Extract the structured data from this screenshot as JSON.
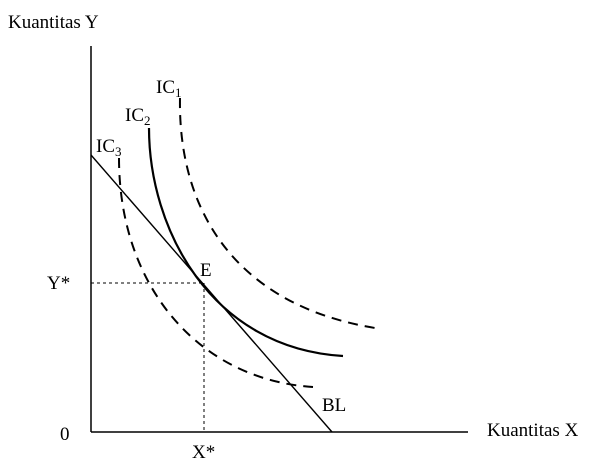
{
  "axes": {
    "y_label": "Kuantitas Y",
    "x_label": "Kuantitas X",
    "origin_label": "0"
  },
  "equilibrium": {
    "point_label": "E",
    "y_star_label": "Y*",
    "x_star_label": "X*"
  },
  "budget_line": {
    "label": "BL"
  },
  "indifference_curves": [
    {
      "base": "IC",
      "subscript": "1",
      "style": "dashed"
    },
    {
      "base": "IC",
      "subscript": "2",
      "style": "solid"
    },
    {
      "base": "IC",
      "subscript": "3",
      "style": "dashed"
    }
  ]
}
